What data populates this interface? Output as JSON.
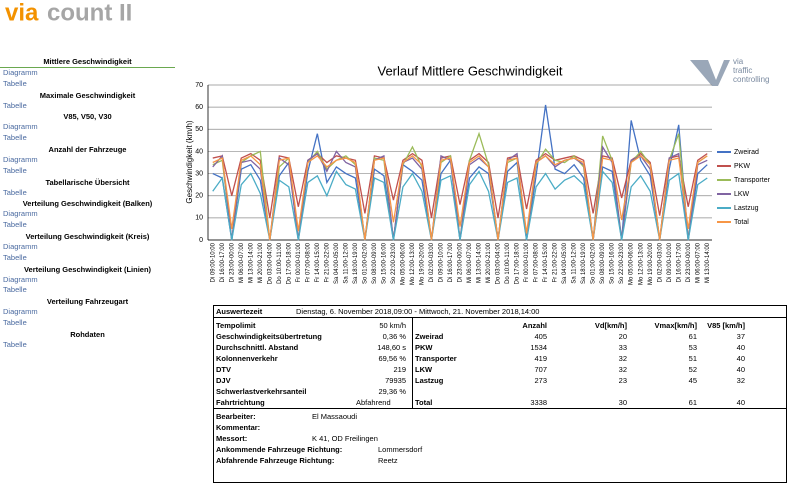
{
  "header": {
    "logo": [
      "via",
      "count II"
    ],
    "brand": [
      "via",
      "traffic",
      "controlling"
    ]
  },
  "nav": [
    {
      "title": "Mittlere Geschwindigkeit",
      "links": [
        "Diagramm",
        "Tabelle"
      ]
    },
    {
      "title": "Maximale Geschwindigkeit",
      "links": [
        "Tabelle"
      ]
    },
    {
      "title": "V85, V50, V30",
      "links": [
        "Diagramm",
        "Tabelle"
      ]
    },
    {
      "title": "Anzahl der Fahrzeuge",
      "links": [
        "Diagramm",
        "Tabelle"
      ]
    },
    {
      "title": "Tabellarische Übersicht",
      "links": [
        "Tabelle"
      ]
    },
    {
      "title": "Verteilung Geschwindigkeit (Balken)",
      "links": [
        "Diagramm",
        "Tabelle"
      ]
    },
    {
      "title": "Verteilung Geschwindigkeit (Kreis)",
      "links": [
        "Diagramm",
        "Tabelle"
      ]
    },
    {
      "title": "Verteilung Geschwindigkeit (Linien)",
      "links": [
        "Diagramm",
        "Tabelle"
      ]
    },
    {
      "title": "Verteilung Fahrzeugart",
      "links": [
        "Diagramm",
        "Tabelle"
      ]
    },
    {
      "title": "Rohdaten",
      "links": [
        "Tabelle"
      ]
    }
  ],
  "chart_data": {
    "type": "line",
    "title": "Verlauf  Mittlere Geschwindigkeit",
    "y_label": "Geschwindigkeit (km/h)",
    "ylim": [
      0,
      70
    ],
    "yticks": [
      0,
      10,
      20,
      30,
      40,
      50,
      60,
      70
    ],
    "grid": true,
    "legend": "right",
    "categories": [
      "Di 09:00-10:00",
      "Di 16:00-17:00",
      "Di 23:00-00:00",
      "Mi 06:00-07:00",
      "Mi 13:00-14:00",
      "Mi 20:00-21:00",
      "Do 03:00-04:00",
      "Do 10:00-11:00",
      "Do 17:00-18:00",
      "Fr 00:00-01:00",
      "Fr 07:00-08:00",
      "Fr 14:00-15:00",
      "Fr 21:00-22:00",
      "Sa 04:00-05:00",
      "Sa 11:00-12:00",
      "Sa 18:00-19:00",
      "So 01:00-02:00",
      "So 08:00-09:00",
      "So 15:00-16:00",
      "So 22:00-23:00",
      "Mo 05:00-06:00",
      "Mo 12:00-13:00",
      "Mo 19:00-20:00",
      "Di 02:00-03:00",
      "Di 09:00-10:00",
      "Di 16:00-17:00",
      "Di 23:00-00:00",
      "Mi 06:00-07:00",
      "Mi 13:00-14:00",
      "Mi 20:00-21:00",
      "Do 03:00-04:00",
      "Do 10:00-11:00",
      "Do 17:00-18:00",
      "Fr 00:00-01:00",
      "Fr 07:00-08:00",
      "Fr 14:00-15:00",
      "Fr 21:00-22:00",
      "Sa 04:00-05:00",
      "Sa 11:00-12:00",
      "Sa 18:00-19:00",
      "So 01:00-02:00",
      "So 08:00-09:00",
      "So 15:00-16:00",
      "So 22:00-23:00",
      "Mo 05:00-06:00",
      "Mo 12:00-13:00",
      "Mo 19:00-20:00",
      "Di 02:00-03:00",
      "Di 09:00-10:00",
      "Di 16:00-17:00",
      "Di 23:00-00:00",
      "Mi 06:00-07:00",
      "Mi 13:00-14:00"
    ],
    "series": [
      {
        "name": "Zweirad",
        "color": "#4472c4",
        "values": [
          30,
          28,
          0,
          32,
          34,
          27,
          0,
          29,
          35,
          0,
          31,
          48,
          26,
          33,
          30,
          28,
          0,
          32,
          29,
          0,
          34,
          31,
          27,
          0,
          30,
          36,
          0,
          28,
          33,
          30,
          0,
          31,
          35,
          0,
          29,
          61,
          32,
          30,
          34,
          28,
          0,
          33,
          31,
          0,
          54,
          36,
          29,
          0,
          32,
          52,
          0,
          30,
          34
        ]
      },
      {
        "name": "PKW",
        "color": "#c0504d",
        "values": [
          37,
          38,
          20,
          37,
          39,
          36,
          10,
          38,
          37,
          15,
          36,
          39,
          35,
          38,
          37,
          36,
          12,
          38,
          37,
          18,
          36,
          39,
          36,
          10,
          37,
          38,
          16,
          36,
          39,
          35,
          10,
          37,
          38,
          14,
          36,
          39,
          36,
          37,
          38,
          36,
          12,
          38,
          37,
          19,
          36,
          39,
          35,
          11,
          37,
          38,
          15,
          36,
          39
        ]
      },
      {
        "name": "Transporter",
        "color": "#9bbb59",
        "values": [
          34,
          36,
          0,
          35,
          38,
          40,
          0,
          33,
          37,
          0,
          35,
          40,
          32,
          36,
          38,
          34,
          0,
          37,
          36,
          0,
          34,
          42,
          33,
          0,
          35,
          38,
          0,
          36,
          48,
          34,
          0,
          35,
          37,
          0,
          34,
          41,
          36,
          35,
          38,
          33,
          0,
          47,
          36,
          0,
          35,
          40,
          34,
          0,
          36,
          48,
          0,
          35,
          38
        ]
      },
      {
        "name": "LKW",
        "color": "#8064a2",
        "values": [
          33,
          38,
          0,
          35,
          36,
          32,
          0,
          37,
          34,
          0,
          36,
          39,
          31,
          40,
          35,
          33,
          0,
          36,
          38,
          0,
          35,
          37,
          32,
          0,
          38,
          36,
          0,
          34,
          37,
          33,
          0,
          36,
          39,
          0,
          35,
          38,
          33,
          36,
          37,
          34,
          0,
          42,
          35,
          0,
          36,
          38,
          32,
          0,
          37,
          39,
          0,
          34,
          36
        ]
      },
      {
        "name": "Lastzug",
        "color": "#4bacc6",
        "values": [
          22,
          28,
          0,
          25,
          30,
          21,
          0,
          27,
          24,
          0,
          26,
          29,
          20,
          31,
          25,
          23,
          0,
          28,
          26,
          0,
          24,
          30,
          22,
          0,
          27,
          29,
          0,
          25,
          31,
          22,
          0,
          26,
          28,
          0,
          24,
          30,
          23,
          27,
          29,
          25,
          0,
          31,
          26,
          0,
          24,
          29,
          22,
          0,
          27,
          30,
          0,
          25,
          28
        ]
      },
      {
        "name": "Total",
        "color": "#f79646",
        "values": [
          35,
          37,
          5,
          36,
          38,
          34,
          0,
          36,
          37,
          4,
          35,
          38,
          33,
          36,
          37,
          35,
          0,
          36,
          37,
          8,
          35,
          38,
          34,
          0,
          36,
          37,
          6,
          35,
          38,
          33,
          0,
          36,
          37,
          3,
          35,
          38,
          34,
          36,
          37,
          35,
          0,
          37,
          36,
          9,
          35,
          38,
          34,
          0,
          36,
          37,
          5,
          35,
          38
        ]
      }
    ]
  },
  "report": {
    "period_label": "Auswertezeit",
    "period": "Dienstag, 6. November 2018,09:00  -  Mittwoch, 21. November 2018,14:00",
    "stats": [
      [
        "Tempolimit",
        "50 km/h"
      ],
      [
        "Geschwindigkeitsübertretung",
        "0,36 %"
      ],
      [
        "Durchschnittl. Abstand",
        "148,60 s"
      ],
      [
        "Kolonnenverkehr",
        "69,56 %"
      ],
      [
        "DTV",
        "219"
      ],
      [
        "DJV",
        "79935"
      ],
      [
        "Schwerlastverkehrsanteil",
        "29,36 %"
      ],
      [
        "Fahrtrichtung",
        "Abfahrend"
      ]
    ],
    "vehicle_header": [
      "Anzahl",
      "Vd[km/h]",
      "Vmax[km/h]",
      "V85 [km/h]"
    ],
    "vehicle_rows": [
      [
        "Zweirad",
        405,
        20,
        61,
        37
      ],
      [
        "PKW",
        1534,
        33,
        53,
        40
      ],
      [
        "Transporter",
        419,
        32,
        51,
        40
      ],
      [
        "LKW",
        707,
        32,
        52,
        40
      ],
      [
        "Lastzug",
        273,
        23,
        45,
        32
      ],
      [
        "Total",
        3338,
        30,
        61,
        40
      ]
    ],
    "details": [
      {
        "label": "Bearbeiter:",
        "value": "El Massaoudi"
      },
      {
        "label": "Kommentar:"
      },
      {
        "label": "Messort:",
        "value": "K 41, OD Freilingen"
      },
      {
        "label": "Ankommende Fahrzeuge Richtung:",
        "value": "Lommersdorf"
      },
      {
        "label": "Abfahrende Fahrzeuge Richtung:",
        "value": "Reetz"
      }
    ]
  }
}
